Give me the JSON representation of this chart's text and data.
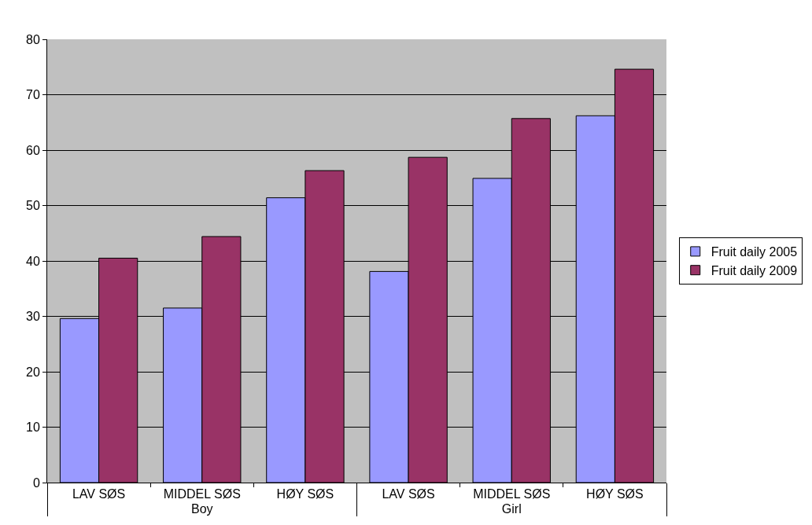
{
  "chart_data": {
    "type": "bar",
    "categories": [
      "LAV SØS",
      "MIDDEL SØS",
      "HØY SØS",
      "LAV SØS",
      "MIDDEL SØS",
      "HØY SØS"
    ],
    "annotations": [
      "Boy",
      "Girl"
    ],
    "series": [
      {
        "name": "Fruit daily 2005",
        "color": "#9999ff",
        "values": [
          29.6,
          31.5,
          51.4,
          38.1,
          54.9,
          66.2
        ]
      },
      {
        "name": "Fruit daily 2009",
        "color": "#993366",
        "values": [
          40.5,
          44.4,
          56.3,
          58.7,
          65.7,
          74.6
        ]
      }
    ],
    "ylim": [
      0,
      80
    ],
    "yticks": [
      0,
      10,
      20,
      30,
      40,
      50,
      60,
      70,
      80
    ],
    "grid": "y",
    "legend": "right"
  }
}
